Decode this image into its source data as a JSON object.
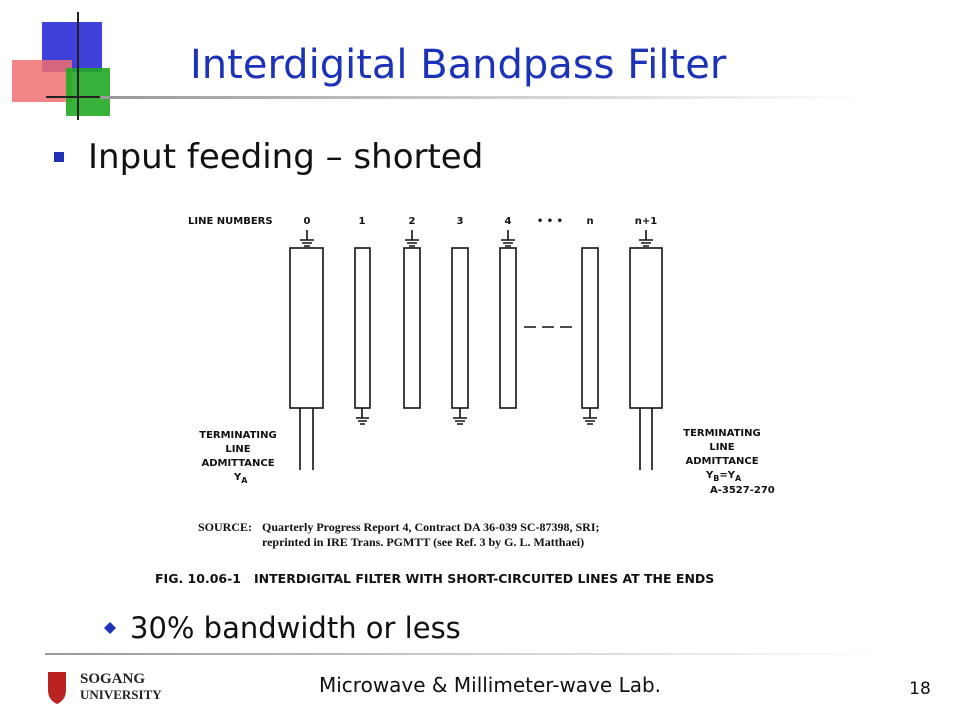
{
  "header": {
    "title": "Interdigital Bandpass Filter"
  },
  "bullets": [
    {
      "text": "Input feeding – shorted"
    },
    {
      "text": "30% bandwidth or less"
    }
  ],
  "figure": {
    "line_numbers_label": "LINE NUMBERS",
    "line_numbers": [
      "0",
      "1",
      "2",
      "3",
      "4",
      "• • •",
      "n",
      "n+1"
    ],
    "left_termination": {
      "lines": [
        "TERMINATING",
        "LINE",
        "ADMITTANCE"
      ],
      "symbol": "Y",
      "subscript": "A"
    },
    "right_termination": {
      "lines": [
        "TERMINATING",
        "LINE",
        "ADMITTANCE"
      ],
      "symbol": "Y",
      "subscript": "B",
      "equals": "=Y",
      "subscript2": "A"
    },
    "code": "A-3527-270",
    "source_label": "SOURCE:",
    "source_lines": [
      "Quarterly Progress Report 4, Contract DA 36-039 SC-87398, SRI;",
      "reprinted in IRE Trans. PGMTT (see Ref. 3 by G. L. Matthaei)"
    ],
    "caption": "FIG. 10.06-1   INTERDIGITAL FILTER WITH SHORT-CIRCUITED LINES AT THE ENDS"
  },
  "footer": {
    "logo_top": "SOGANG",
    "logo_bottom": "UNIVERSITY",
    "lab": "Microwave & Millimeter-wave Lab.",
    "page": "18"
  }
}
